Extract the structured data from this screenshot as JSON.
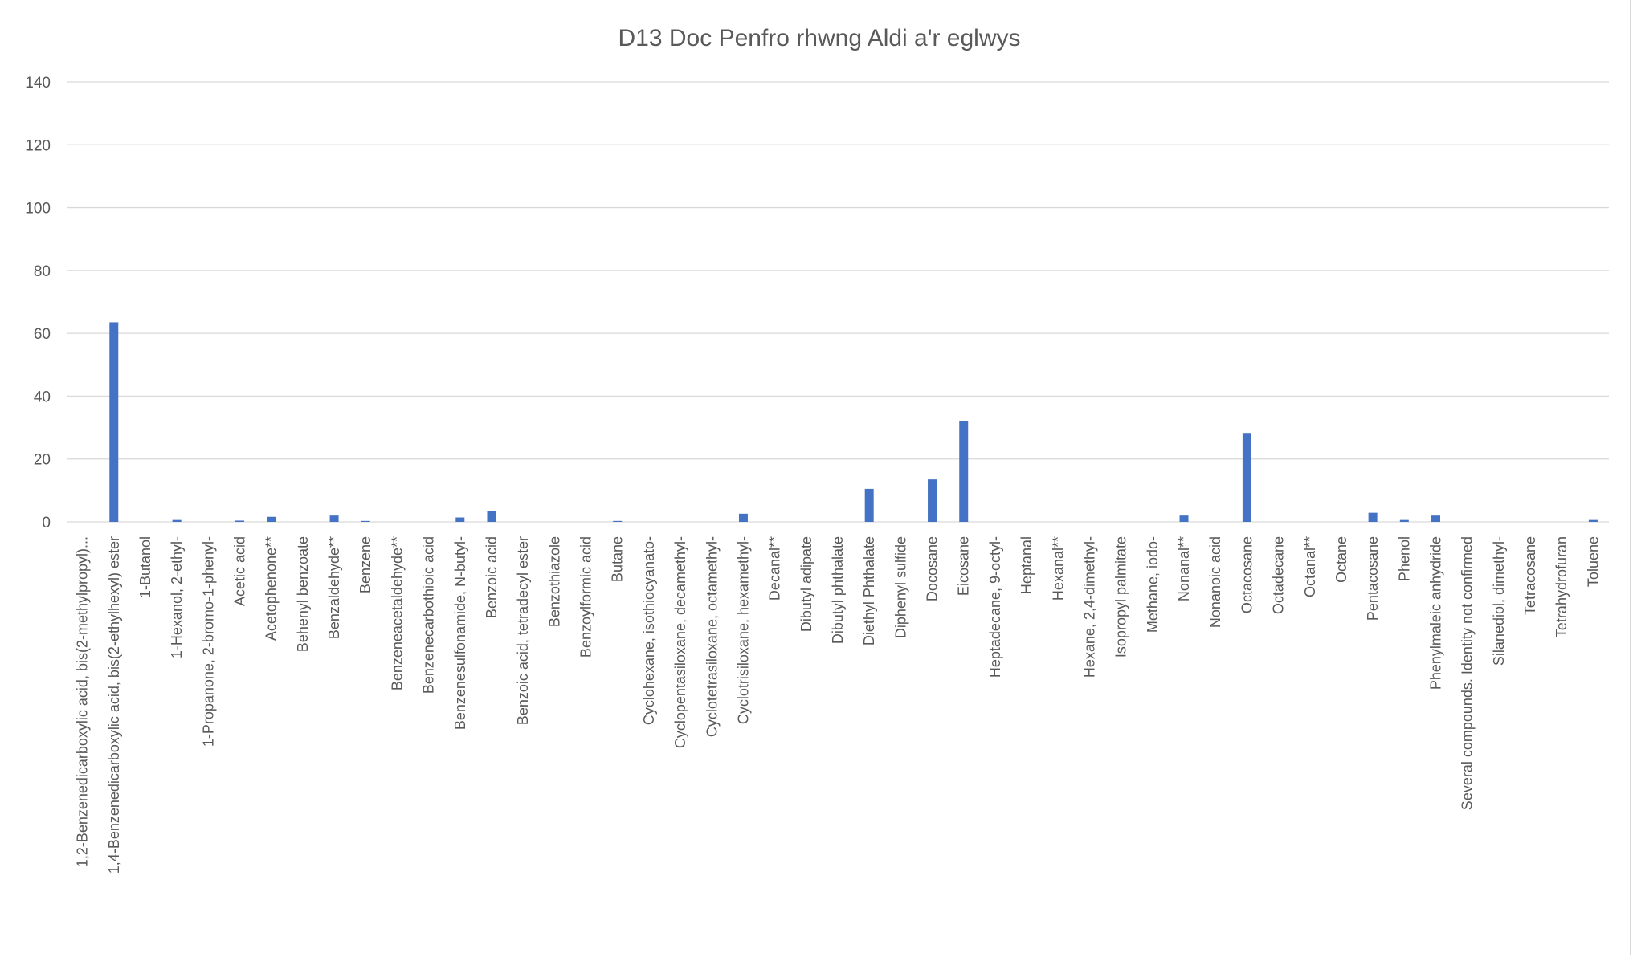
{
  "chart_data": {
    "type": "bar",
    "title": "D13 Doc Penfro rhwng Aldi a'r eglwys",
    "xlabel": "",
    "ylabel": "",
    "ylim": [
      0,
      140
    ],
    "yticks": [
      0,
      20,
      40,
      60,
      80,
      100,
      120,
      140
    ],
    "ytick_labels": [
      "0",
      "20",
      "40",
      "60",
      "80",
      "100",
      "120",
      "140"
    ],
    "grid": true,
    "legend": "none",
    "bar_color": "#4472c4",
    "grid_color": "#d9d9d9",
    "text_color": "#595959",
    "categories": [
      "1,2-Benzenedicarboxylic acid, bis(2-methylpropyl)...",
      "1,4-Benzenedicarboxylic acid, bis(2-ethylhexyl) ester",
      "1-Butanol",
      "1-Hexanol, 2-ethyl-",
      "1-Propanone, 2-bromo-1-phenyl-",
      "Acetic acid",
      "Acetophenone**",
      "Behenyl benzoate",
      "Benzaldehyde**",
      "Benzene",
      "Benzeneacetaldehyde**",
      "Benzenecarbothioic acid",
      "Benzenesulfonamide, N-butyl-",
      "Benzoic acid",
      "Benzoic acid, tetradecyl ester",
      "Benzothiazole",
      "Benzoylformic acid",
      "Butane",
      "Cyclohexane, isothiocyanato-",
      "Cyclopentasiloxane, decamethyl-",
      "Cyclotetrasiloxane, octamethyl-",
      "Cyclotrisiloxane, hexamethyl-",
      "Decanal**",
      "Dibutyl adipate",
      "Dibutyl phthalate",
      "Diethyl Phthalate",
      "Diphenyl sulfide",
      "Docosane",
      "Eicosane",
      "Heptadecane, 9-octyl-",
      "Heptanal",
      "Hexanal**",
      "Hexane, 2,4-dimethyl-",
      "Isopropyl palmitate",
      "Methane, iodo-",
      "Nonanal**",
      "Nonanoic acid",
      "Octacosane",
      "Octadecane",
      "Octanal**",
      "Octane",
      "Pentacosane",
      "Phenol",
      "Phenylmaleic anhydride",
      "Several compounds. Identity not confirmed",
      "Silanediol, dimethyl-",
      "Tetracosane",
      "Tetrahydrofuran",
      "Toluene"
    ],
    "values": [
      0,
      63.5,
      0,
      0.6,
      0,
      0.4,
      1.6,
      0,
      2,
      0.3,
      0,
      0,
      1.4,
      3.4,
      0,
      0,
      0,
      0.3,
      0,
      0,
      0,
      2.6,
      0,
      0,
      0,
      10.5,
      0,
      13.5,
      32,
      0,
      0,
      0,
      0,
      0,
      0,
      2,
      0,
      28.3,
      0,
      0,
      0,
      2.9,
      0.6,
      2,
      0,
      0,
      0,
      0,
      0.6
    ]
  }
}
